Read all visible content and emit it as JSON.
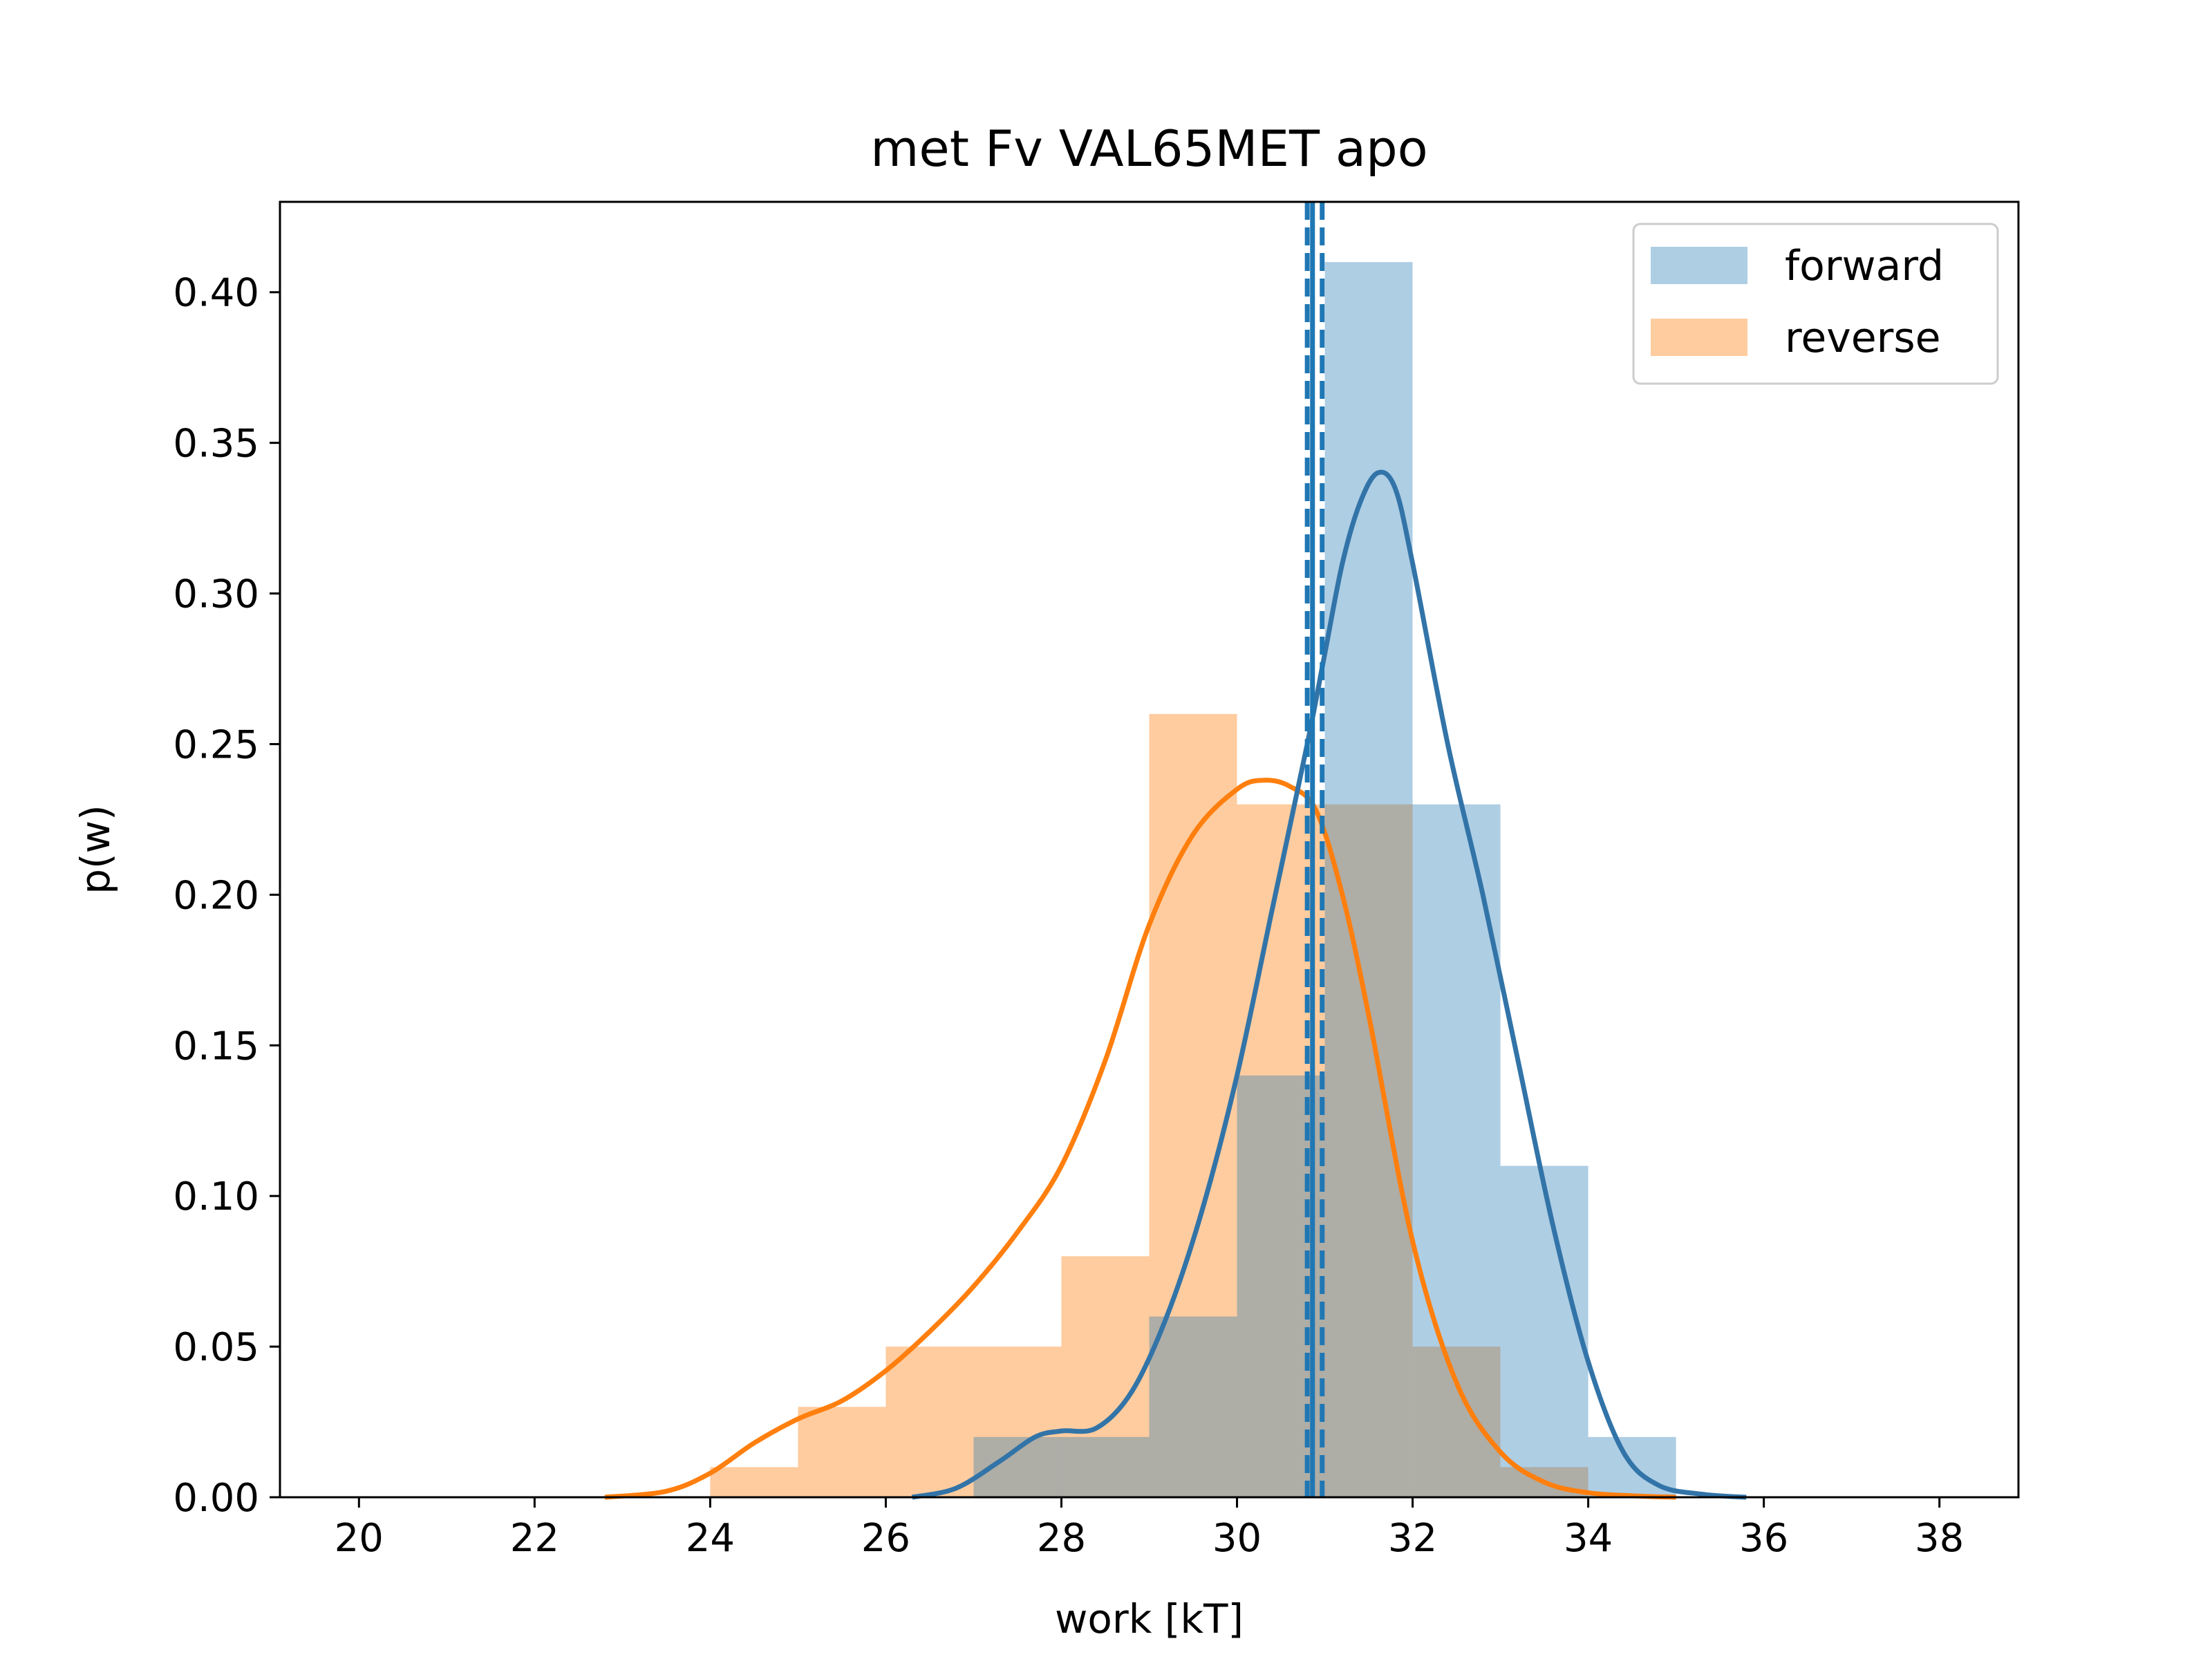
{
  "chart_data": {
    "type": "histogram",
    "title": "met Fv VAL65MET apo",
    "xlabel": "work [kT]",
    "ylabel": "p(w)",
    "xlim": [
      19.1,
      38.9
    ],
    "ylim": [
      0,
      0.43
    ],
    "xticks": [
      20,
      22,
      24,
      26,
      28,
      30,
      32,
      34,
      36,
      38
    ],
    "yticks": [
      0.0,
      0.05,
      0.1,
      0.15,
      0.2,
      0.25,
      0.3,
      0.35,
      0.4
    ],
    "ytick_labels": [
      "0.00",
      "0.05",
      "0.10",
      "0.15",
      "0.20",
      "0.25",
      "0.30",
      "0.35",
      "0.40"
    ],
    "legend_position": "top-right",
    "series": [
      {
        "name": "forward",
        "color": "#1f77b4",
        "hist_bins": [
          27,
          28,
          29,
          30,
          31,
          32,
          33,
          34,
          35
        ],
        "hist_values": [
          0.02,
          0.02,
          0.06,
          0.14,
          0.41,
          0.23,
          0.11,
          0.02
        ],
        "kde": {
          "x": [
            26.3,
            26.8,
            27.3,
            27.7,
            28.0,
            28.4,
            28.8,
            29.2,
            29.6,
            30.0,
            30.4,
            30.8,
            31.0,
            31.2,
            31.4,
            31.6,
            31.8,
            32.0,
            32.4,
            32.8,
            33.2,
            33.6,
            34.0,
            34.4,
            34.8,
            35.3,
            35.8
          ],
          "y": [
            0.0,
            0.003,
            0.012,
            0.02,
            0.022,
            0.023,
            0.035,
            0.06,
            0.095,
            0.14,
            0.195,
            0.25,
            0.28,
            0.31,
            0.33,
            0.34,
            0.335,
            0.31,
            0.25,
            0.2,
            0.145,
            0.09,
            0.045,
            0.015,
            0.004,
            0.001,
            0.0
          ]
        },
        "mean_lines": [
          30.8,
          30.86,
          30.97
        ]
      },
      {
        "name": "reverse",
        "color": "#ff7f0e",
        "hist_bins": [
          24,
          25,
          26,
          27,
          28,
          29,
          30,
          31,
          32,
          33,
          34
        ],
        "hist_values": [
          0.01,
          0.03,
          0.05,
          0.05,
          0.08,
          0.26,
          0.23,
          0.23,
          0.05,
          0.01
        ],
        "kde": {
          "x": [
            22.8,
            23.5,
            24.0,
            24.5,
            25.0,
            25.5,
            26.0,
            26.5,
            27.0,
            27.5,
            28.0,
            28.5,
            29.0,
            29.5,
            30.0,
            30.3,
            30.6,
            30.9,
            31.2,
            31.5,
            32.0,
            32.5,
            33.0,
            33.5,
            34.0,
            34.5,
            35.0
          ],
          "y": [
            0.0,
            0.002,
            0.008,
            0.018,
            0.026,
            0.032,
            0.042,
            0.055,
            0.07,
            0.088,
            0.11,
            0.145,
            0.19,
            0.22,
            0.235,
            0.238,
            0.236,
            0.228,
            0.2,
            0.16,
            0.085,
            0.038,
            0.015,
            0.005,
            0.0015,
            0.0005,
            0.0
          ]
        }
      }
    ]
  }
}
